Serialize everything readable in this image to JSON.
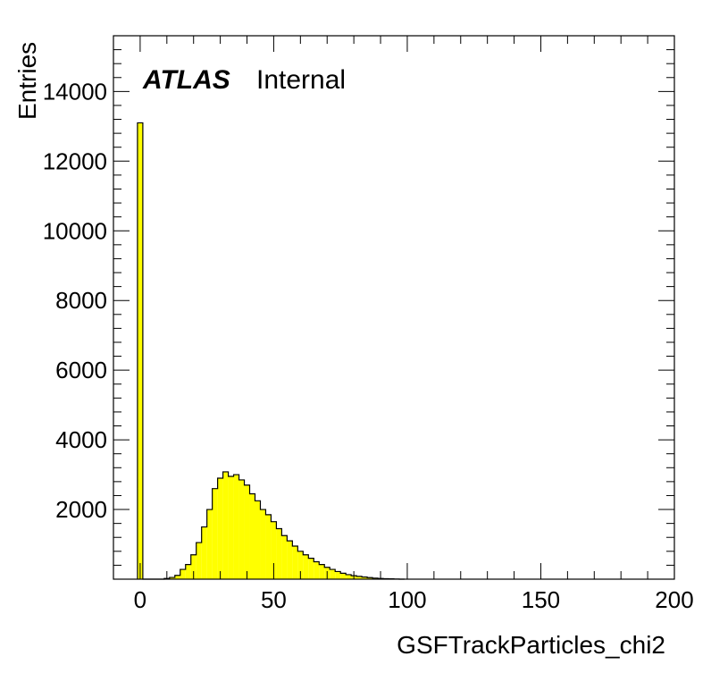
{
  "chart_data": {
    "type": "bar",
    "histogram": true,
    "title": "",
    "xlabel": "GSFTrackParticles_chi2",
    "ylabel": "Entries",
    "xlim": [
      -10,
      200
    ],
    "ylim": [
      0,
      15600
    ],
    "x_ticks": [
      0,
      50,
      100,
      150,
      200
    ],
    "x_tick_labels": [
      "0",
      "50",
      "100",
      "150",
      "200"
    ],
    "y_ticks": [
      2000,
      4000,
      6000,
      8000,
      10000,
      12000,
      14000
    ],
    "y_tick_labels": [
      "2000",
      "4000",
      "6000",
      "8000",
      "10000",
      "12000",
      "14000"
    ],
    "bin_width": 2,
    "bin_edges_start": 0,
    "values": [
      13100,
      0,
      0,
      0,
      0,
      20,
      50,
      110,
      280,
      420,
      700,
      1050,
      1500,
      2000,
      2600,
      2900,
      3080,
      2950,
      3000,
      2850,
      2700,
      2450,
      2250,
      2000,
      1850,
      1650,
      1450,
      1250,
      1100,
      950,
      800,
      700,
      600,
      500,
      420,
      340,
      280,
      220,
      170,
      130,
      100,
      80,
      60,
      45,
      30,
      20,
      15,
      10,
      5,
      0
    ],
    "colors": {
      "fill": "#ffff00",
      "line": "#000000"
    },
    "grid": false,
    "label": {
      "experiment": "ATLAS",
      "status": "Internal"
    }
  }
}
